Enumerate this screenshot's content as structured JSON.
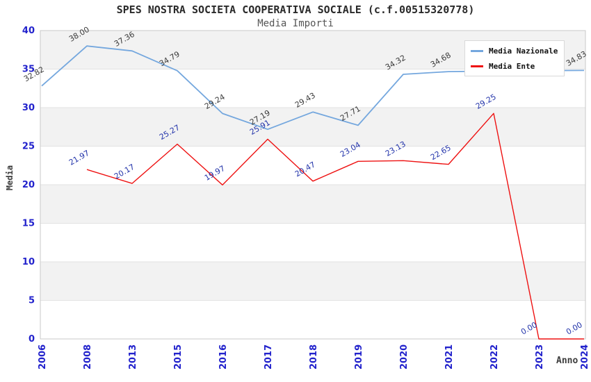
{
  "chart_data": {
    "type": "line",
    "title": "SPES NOSTRA SOCIETA COOPERATIVA SOCIALE (c.f.00515320778)",
    "subtitle": "Media Importi",
    "xlabel": "Anno",
    "ylabel": "Media",
    "categories": [
      "2006",
      "2008",
      "2013",
      "2015",
      "2016",
      "2017",
      "2018",
      "2019",
      "2020",
      "2021",
      "2022",
      "2023",
      "2024"
    ],
    "y_ticks": [
      0,
      5,
      10,
      15,
      20,
      25,
      30,
      35,
      40
    ],
    "ylim": [
      0,
      40
    ],
    "grid": "horizontal-bands-alternating",
    "legend_position": "top-right",
    "series": [
      {
        "name": "Media Nazionale",
        "color": "#74a7de",
        "label_color": "#3a3a3a",
        "values": [
          32.82,
          38.0,
          37.36,
          34.79,
          29.24,
          27.19,
          29.43,
          27.71,
          34.32,
          34.68,
          34.75,
          34.8,
          34.83
        ],
        "labels": [
          "32.82",
          "38.00",
          "37.36",
          "34.79",
          "29.24",
          "27.19",
          "29.43",
          "27.71",
          "34.32",
          "34.68",
          "",
          "",
          "34.83"
        ]
      },
      {
        "name": "Media Ente",
        "color": "#ee1111",
        "label_color": "#2233aa",
        "values": [
          null,
          21.97,
          20.17,
          25.27,
          19.97,
          25.91,
          20.47,
          23.04,
          23.13,
          22.65,
          29.25,
          0.0,
          0.0
        ],
        "labels": [
          "",
          "21.97",
          "20.17",
          "25.27",
          "19.97",
          "25.91",
          "20.47",
          "23.04",
          "23.13",
          "22.65",
          "29.25",
          "0.00",
          "0.00"
        ]
      }
    ]
  },
  "colors": {
    "tick_label": "#2222cc",
    "axis_title": "#3c3c3c",
    "band_gray": "#f2f2f2",
    "band_white": "#ffffff",
    "gridline": "#e2e2e2",
    "plot_border": "#c9c9c9",
    "legend_border": "#d9d9d9",
    "title_text": "#2a2a2a",
    "subtitle_text": "#555555"
  }
}
